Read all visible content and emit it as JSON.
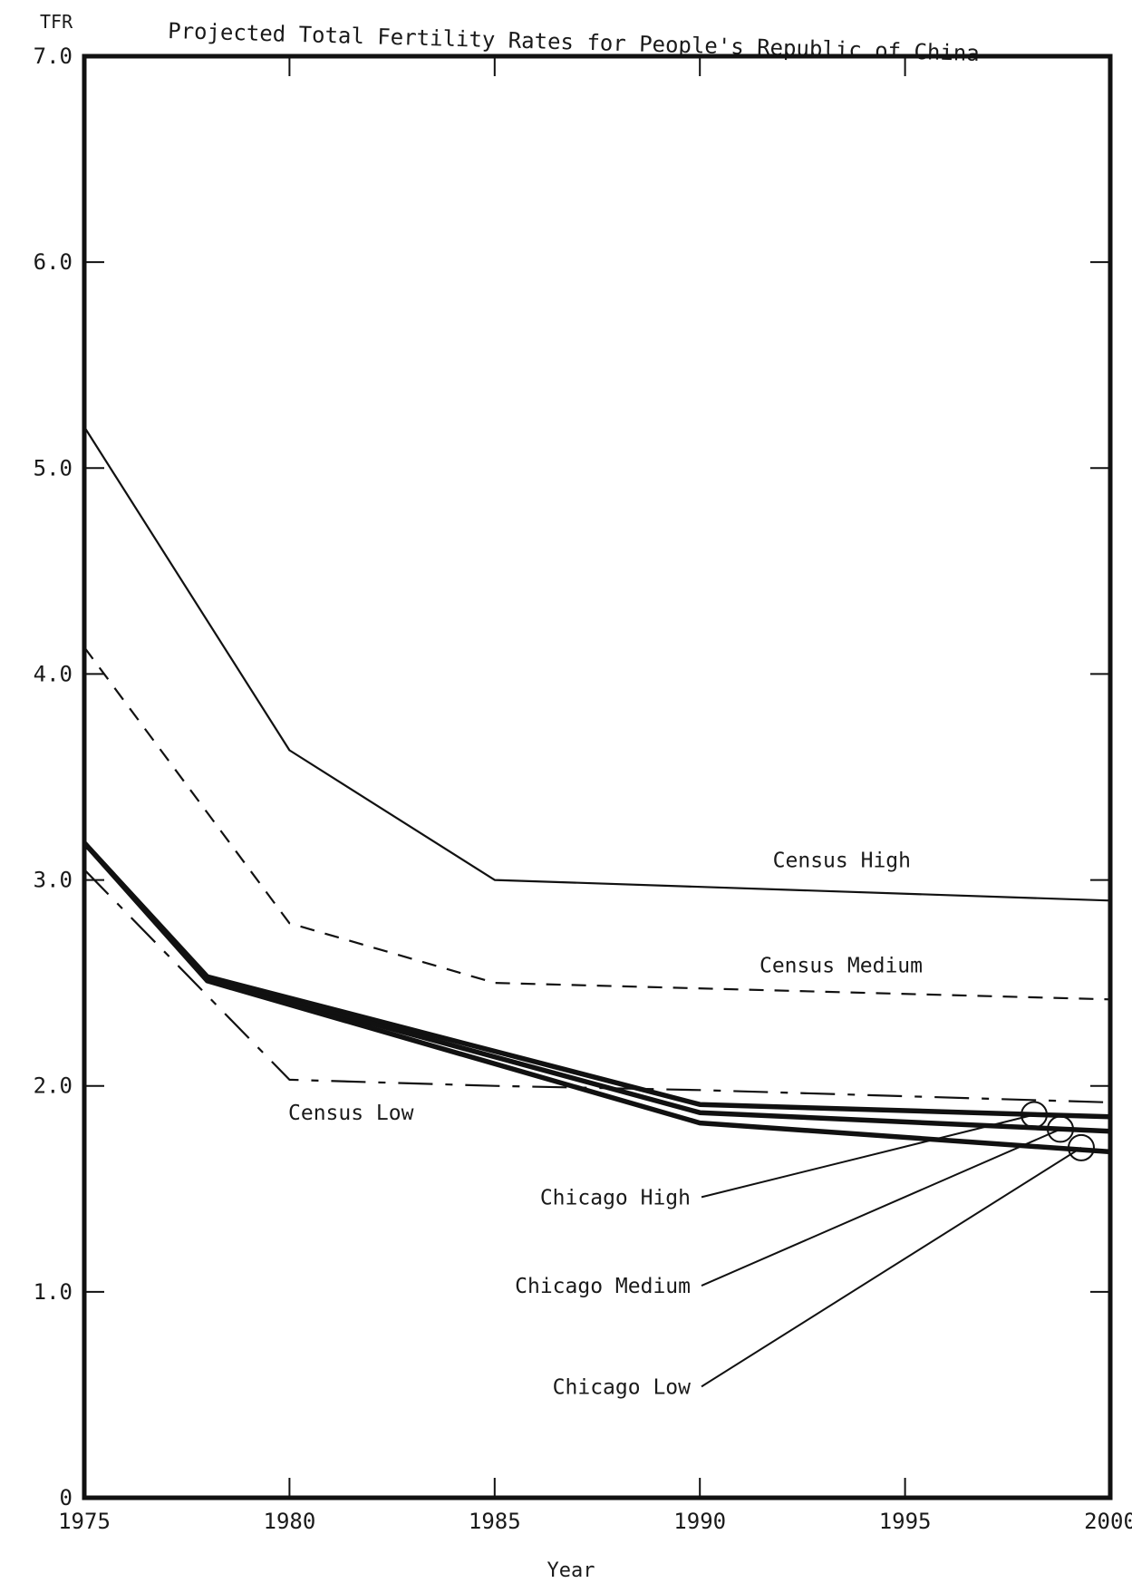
{
  "chart_data": {
    "type": "line",
    "title": "Projected Total Fertility Rates for People's Republic of China",
    "ylabel": "TFR",
    "xlabel": "Year",
    "xlim": [
      1975,
      2000
    ],
    "ylim": [
      0,
      7.0
    ],
    "x_ticks": [
      1975,
      1980,
      1985,
      1990,
      1995,
      2000
    ],
    "x_tick_labels": [
      "1975",
      "1980",
      "1985",
      "1990",
      "1995",
      "2000"
    ],
    "y_ticks": [
      0,
      1.0,
      2.0,
      3.0,
      4.0,
      5.0,
      6.0,
      7.0
    ],
    "y_tick_labels": [
      "0",
      "1.0",
      "2.0",
      "3.0",
      "4.0",
      "5.0",
      "6.0",
      "7.0"
    ],
    "grid": false,
    "legend": "inline labels",
    "series": [
      {
        "name": "Census High",
        "style": "solid",
        "x": [
          1975,
          1980,
          1985,
          2000
        ],
        "y": [
          5.2,
          3.63,
          3.0,
          2.9
        ]
      },
      {
        "name": "Census Medium",
        "style": "dashed",
        "x": [
          1975,
          1980,
          1985,
          2000
        ],
        "y": [
          4.13,
          2.79,
          2.5,
          2.42
        ]
      },
      {
        "name": "Census Low",
        "style": "dash-dot",
        "x": [
          1975,
          1980,
          1985,
          1990,
          2000
        ],
        "y": [
          3.05,
          2.03,
          2.0,
          1.98,
          1.92
        ]
      },
      {
        "name": "Chicago High",
        "style": "thick",
        "x": [
          1975,
          1978,
          1990,
          2000
        ],
        "y": [
          3.18,
          2.53,
          1.91,
          1.85
        ]
      },
      {
        "name": "Chicago Medium",
        "style": "thick",
        "x": [
          1975,
          1978,
          1990,
          2000
        ],
        "y": [
          3.18,
          2.52,
          1.87,
          1.78
        ]
      },
      {
        "name": "Chicago Low",
        "style": "thick",
        "x": [
          1975,
          1978,
          1990,
          2000
        ],
        "y": [
          3.18,
          2.51,
          1.82,
          1.68
        ]
      }
    ]
  }
}
